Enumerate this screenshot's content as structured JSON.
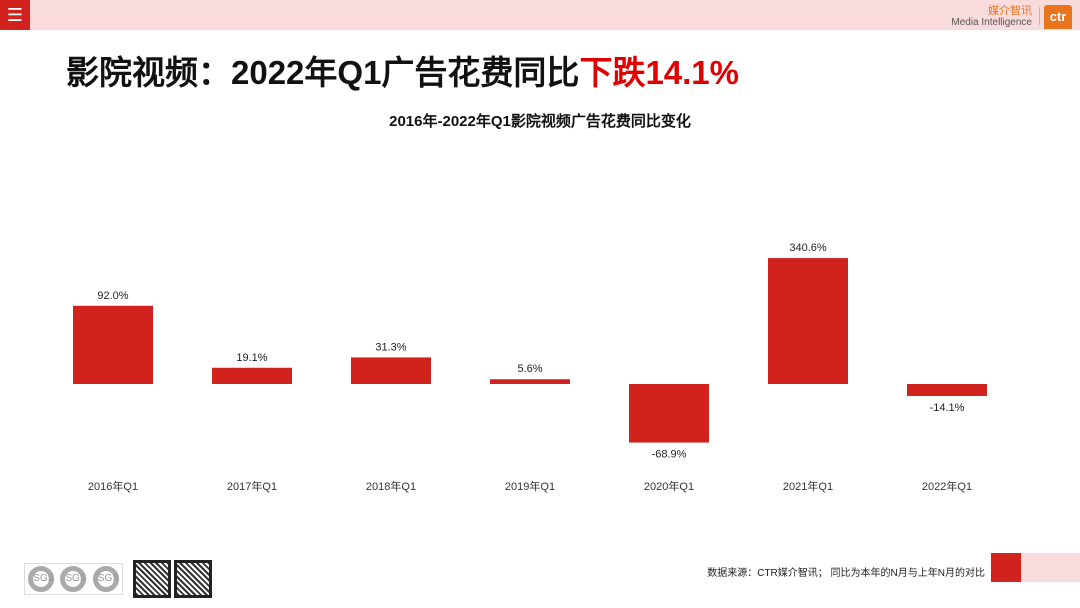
{
  "header": {
    "menu_icon": "hamburger-icon",
    "brand_cn": "媒介智讯",
    "brand_en": "Media Intelligence",
    "logo": "ctr"
  },
  "title": {
    "prefix": "影院视频：2022年Q1广告花费同比",
    "highlight": "下跌14.1%"
  },
  "chart_data": {
    "type": "bar",
    "title": "2016年-2022年Q1影院视频广告花费同比变化",
    "categories": [
      "2016年Q1",
      "2017年Q1",
      "2018年Q1",
      "2019年Q1",
      "2020年Q1",
      "2021年Q1",
      "2022年Q1"
    ],
    "values": [
      92.0,
      19.1,
      31.3,
      5.6,
      -68.9,
      340.6,
      -14.1
    ],
    "labels": [
      "92.0%",
      "19.1%",
      "31.3%",
      "5.6%",
      "-68.9%",
      "340.6%",
      "-14.1%"
    ],
    "unit": "%",
    "color": "#d2221e",
    "grid": false,
    "legend": "none"
  },
  "footer": {
    "note": "数据来源：CTR媒介智讯；  同比为本年的N月与上年N月的对比",
    "sgs_label": "SGS",
    "cert_icon": "sgs-certification-icon",
    "qr_icon": "qr-code-icon"
  }
}
